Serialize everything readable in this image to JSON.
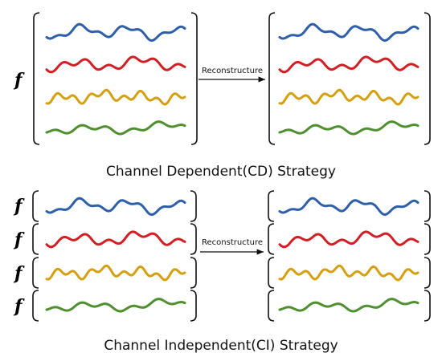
{
  "cd": {
    "function_label": "f",
    "arrow_label": "Reconstructure",
    "caption": "Channel Dependent(CD) Strategy"
  },
  "ci": {
    "function_labels": [
      "f",
      "f",
      "f",
      "f"
    ],
    "arrow_label": "Reconstructure",
    "caption": "Channel Independent(CI) Strategy"
  }
}
